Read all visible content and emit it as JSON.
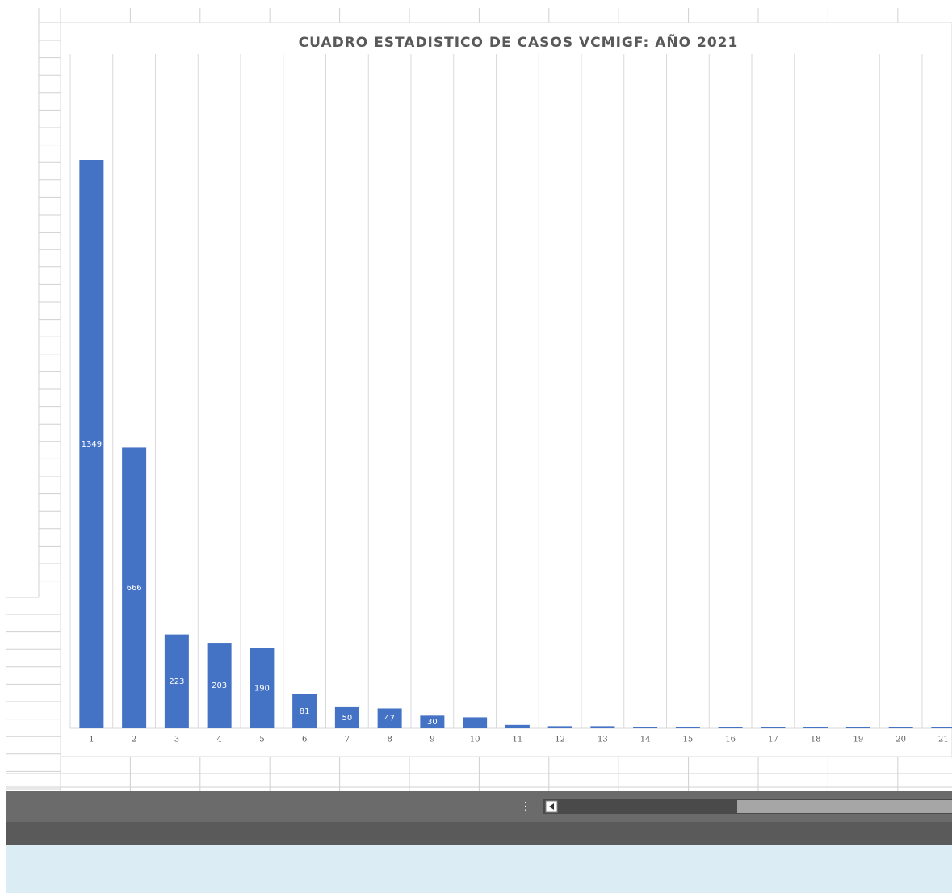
{
  "chart_data": {
    "type": "bar",
    "title": "CUADRO ESTADISTICO DE CASOS VCMIGF: AÑO 2021",
    "categories": [
      "1",
      "2",
      "3",
      "4",
      "5",
      "6",
      "7",
      "8",
      "9",
      "10",
      "11",
      "12",
      "13",
      "14",
      "15",
      "16",
      "17",
      "18",
      "19",
      "20",
      "21"
    ],
    "values": [
      1349,
      666,
      223,
      203,
      190,
      81,
      50,
      47,
      30,
      26,
      8,
      5,
      5,
      2,
      2,
      2,
      2,
      2,
      2,
      2,
      2
    ],
    "color": "#4472c4",
    "ylim": [
      0,
      1600
    ],
    "grid": true
  }
}
